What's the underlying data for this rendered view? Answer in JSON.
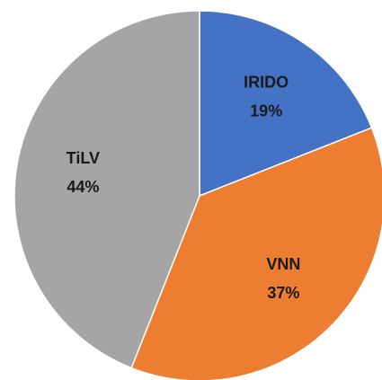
{
  "chart_data": {
    "type": "pie",
    "categories": [
      "IRIDO",
      "VNN",
      "TiLV"
    ],
    "values": [
      19,
      37,
      44
    ],
    "value_labels": [
      "19%",
      "37%",
      "44%"
    ],
    "colors": [
      "#4472c4",
      "#ed7d31",
      "#a5a5a5"
    ]
  }
}
